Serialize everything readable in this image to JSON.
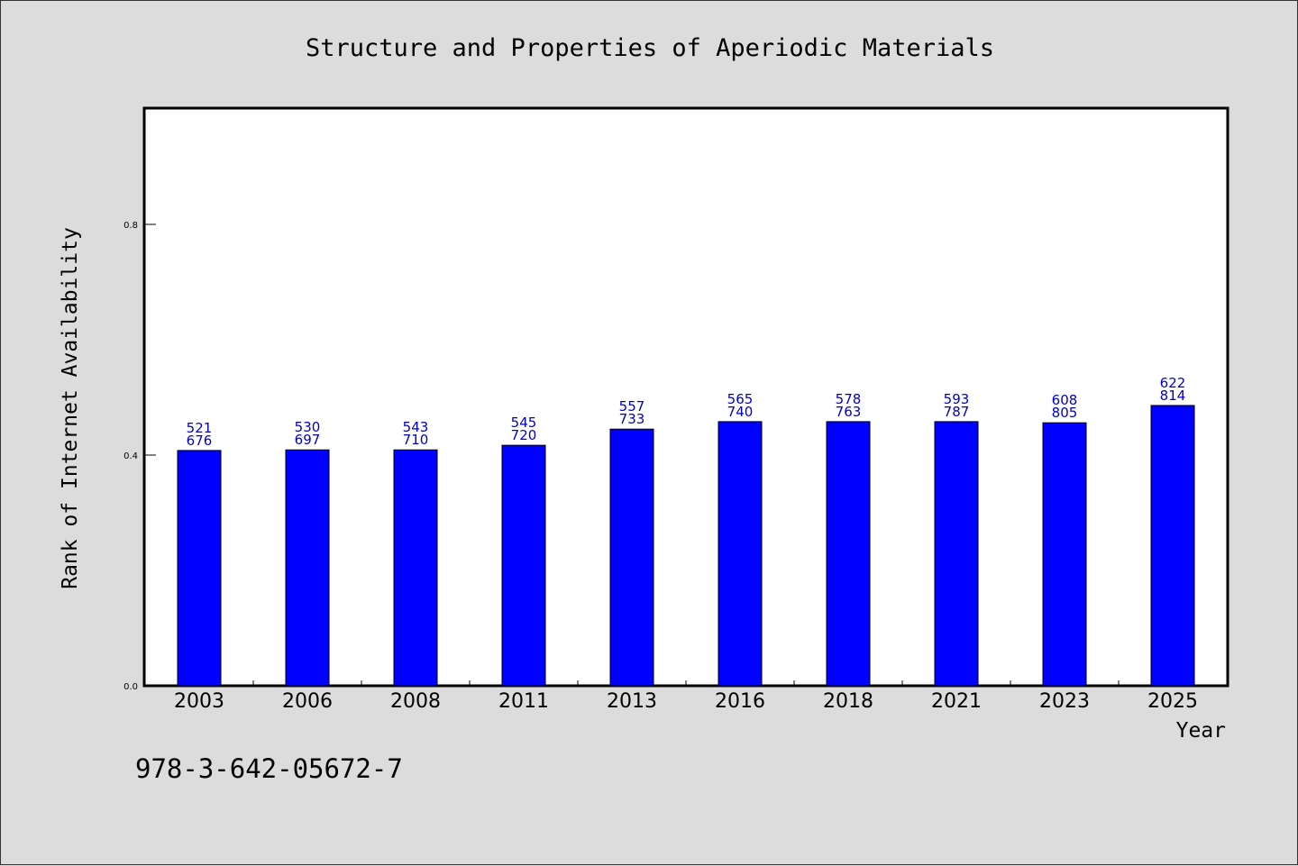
{
  "chart_data": {
    "type": "bar",
    "title": "Structure and Properties of Aperiodic Materials",
    "xlabel": "Year",
    "ylabel": "Rank of Internet Availability",
    "categories": [
      "2003",
      "2006",
      "2008",
      "2011",
      "2013",
      "2016",
      "2018",
      "2021",
      "2023",
      "2025"
    ],
    "values": [
      0.408,
      0.409,
      0.409,
      0.417,
      0.445,
      0.458,
      0.458,
      0.458,
      0.456,
      0.486
    ],
    "annotations_top": [
      "521",
      "530",
      "543",
      "545",
      "557",
      "565",
      "578",
      "593",
      "608",
      "622"
    ],
    "annotations_bottom": [
      "676",
      "697",
      "710",
      "720",
      "733",
      "740",
      "763",
      "787",
      "805",
      "814"
    ],
    "ylim": [
      0.0,
      1.0
    ],
    "yticks": [
      0.0,
      0.4,
      0.8
    ],
    "ytick_labels": [
      "0.0",
      "0.4",
      "0.8"
    ],
    "grid": false,
    "bar_color": "#0000ff",
    "label_color": "#0000cc"
  },
  "footer": {
    "isbn": "978-3-642-05672-7"
  }
}
